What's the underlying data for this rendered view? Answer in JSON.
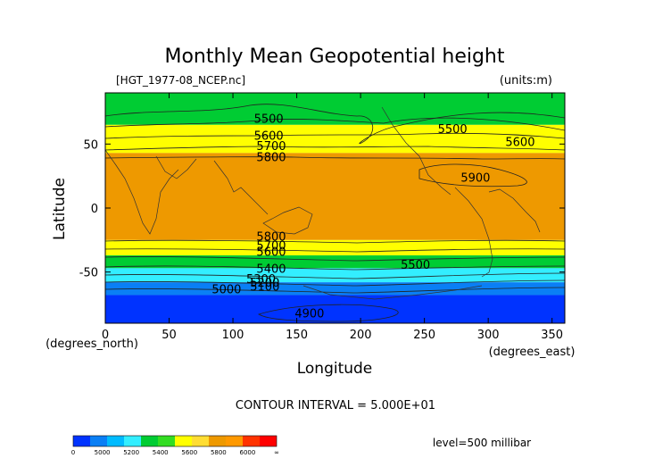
{
  "chart_data": {
    "type": "heatmap",
    "title": "Monthly Mean Geopotential height",
    "subtitle_left": "[HGT_1977-08_NCEP.nc]",
    "subtitle_right": "(units:m)",
    "xlabel": "Longitude",
    "ylabel": "Latitude",
    "x_unit_label": "(degrees_east)",
    "y_unit_label": "(degrees_north)",
    "xlim": [
      0,
      360
    ],
    "ylim": [
      -90,
      90
    ],
    "x_ticks": [
      0,
      50,
      100,
      150,
      200,
      250,
      300,
      350
    ],
    "y_ticks": [
      50,
      0,
      -50
    ],
    "contour_interval_text": "CONTOUR INTERVAL = 5.000E+01",
    "level_text": "level=500 millibar",
    "colorbar": {
      "tick_labels": [
        "0",
        "5000",
        "5200",
        "5400",
        "5600",
        "5800",
        "6000",
        "∞"
      ],
      "colors": [
        "#0033ff",
        "#0a7ff5",
        "#00bbff",
        "#33eeff",
        "#00cc33",
        "#33dd22",
        "#ffff00",
        "#ffdd33",
        "#ee9900",
        "#ff9900",
        "#ff3300",
        "#ff0000"
      ]
    },
    "bands": [
      {
        "from_lat": 90,
        "to_lat": 65,
        "range": "5400-5600",
        "color": "#00cc33"
      },
      {
        "from_lat": 65,
        "to_lat": 43,
        "range": "5600-5800",
        "color": "#ffff00"
      },
      {
        "from_lat": 43,
        "to_lat": -25,
        "range": "5800-6000",
        "color": "#ee9900"
      },
      {
        "from_lat": -25,
        "to_lat": -37,
        "range": "5600-5800",
        "color": "#ffff00"
      },
      {
        "from_lat": -37,
        "to_lat": -47,
        "range": "5400-5600",
        "color": "#00cc33"
      },
      {
        "from_lat": -47,
        "to_lat": -58,
        "range": "5200-5400",
        "color": "#33eeff"
      },
      {
        "from_lat": -58,
        "to_lat": -68,
        "range": "5000-5200",
        "color": "#0a7ff5"
      },
      {
        "from_lat": -68,
        "to_lat": -90,
        "range": "0-5000",
        "color": "#0033ff"
      }
    ],
    "contour_labels": [
      {
        "text": "5500",
        "lon": 128,
        "lat": 70
      },
      {
        "text": "5500",
        "lon": 272,
        "lat": 62
      },
      {
        "text": "5600",
        "lon": 128,
        "lat": 57
      },
      {
        "text": "5600",
        "lon": 325,
        "lat": 52
      },
      {
        "text": "5700",
        "lon": 130,
        "lat": 49
      },
      {
        "text": "5800",
        "lon": 130,
        "lat": 40
      },
      {
        "text": "5900",
        "lon": 290,
        "lat": 24
      },
      {
        "text": "5800",
        "lon": 130,
        "lat": -22
      },
      {
        "text": "5700",
        "lon": 130,
        "lat": -29
      },
      {
        "text": "5600",
        "lon": 130,
        "lat": -34
      },
      {
        "text": "5500",
        "lon": 243,
        "lat": -44
      },
      {
        "text": "5400",
        "lon": 130,
        "lat": -47
      },
      {
        "text": "5300",
        "lon": 122,
        "lat": -55
      },
      {
        "text": "5200",
        "lon": 125,
        "lat": -58
      },
      {
        "text": "5100",
        "lon": 125,
        "lat": -61
      },
      {
        "text": "5000",
        "lon": 95,
        "lat": -63
      },
      {
        "text": "4900",
        "lon": 160,
        "lat": -82
      }
    ]
  }
}
